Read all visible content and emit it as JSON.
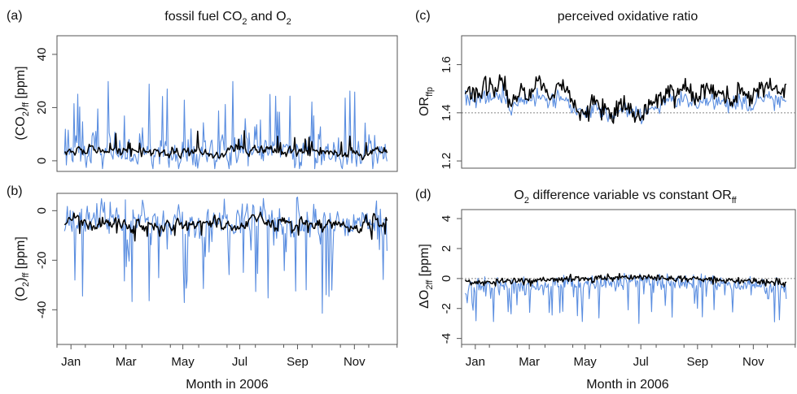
{
  "figure": {
    "background": "#ffffff"
  },
  "colors": {
    "blue": "#5b8ee0",
    "black": "#000000",
    "refline": "#888888"
  },
  "chart_data": [
    {
      "panel": "(a)",
      "type": "line",
      "title": "fossil fuel CO₂ and O₂",
      "title_parts": {
        "pre": "fossil fuel CO",
        "sub1": "2",
        "mid": " and O",
        "sub2": "2"
      },
      "ylabel_parts": {
        "pre": "(CO",
        "sub1": "2",
        "mid": ")",
        "sub2": "ff",
        "post": " [ppm]"
      },
      "xlim": [
        0,
        365
      ],
      "ylim": [
        -4,
        47
      ],
      "yticks": [
        0,
        20,
        40
      ],
      "xticks": [],
      "gen": {
        "seed": 11,
        "base": 3.0,
        "seasonAmp": 0.8,
        "noise": 5.0,
        "spikeProb": 0.13,
        "spikeMin": 6,
        "spikeMax": 26,
        "spikeSign": 1,
        "blackNoise": 1.8,
        "blackBase": 3.5,
        "xstart": 8,
        "xend": 354,
        "n": 340
      },
      "series": [
        {
          "color": "#5b8ee0",
          "width": 1.1,
          "key": "blue",
          "max": 29.8,
          "min": -3.0
        },
        {
          "color": "#000000",
          "width": 1.5,
          "key": "black",
          "max": 11.5,
          "min": -1.5
        }
      ]
    },
    {
      "panel": "(b)",
      "type": "line",
      "ylabel_parts": {
        "pre": "(O",
        "sub1": "2",
        "mid": ")",
        "sub2": "ff",
        "post": " [ppm]"
      },
      "xlim": [
        0,
        365
      ],
      "ylim": [
        -54,
        7
      ],
      "yticks": [
        0,
        -20,
        -40
      ],
      "xticks": [
        "Jan",
        "Mar",
        "May",
        "Jul",
        "Sep",
        "Nov"
      ],
      "xtick_days": [
        15,
        74,
        135,
        196,
        258,
        319
      ],
      "xlabel": "Month in 2006",
      "gen": {
        "seed": 23,
        "base": -4.5,
        "seasonAmp": 0.9,
        "noise": 6.0,
        "spikeProb": 0.13,
        "spikeMin": 8,
        "spikeMax": 36,
        "spikeSign": -1,
        "blackNoise": 2.4,
        "blackBase": -5.5,
        "xstart": 8,
        "xend": 354,
        "n": 340
      },
      "series": [
        {
          "color": "#5b8ee0",
          "width": 1.1,
          "key": "blue",
          "max": 5.5,
          "min": -43.0
        },
        {
          "color": "#000000",
          "width": 1.5,
          "key": "black",
          "max": 1.0,
          "min": -18.0
        }
      ]
    },
    {
      "panel": "(c)",
      "type": "line",
      "title": "perceived oxidative ratio",
      "ylabel_parts": {
        "pre": "OR",
        "sub1": "ffp"
      },
      "xlim": [
        0,
        365
      ],
      "ylim": [
        1.17,
        1.72
      ],
      "yticks": [
        1.2,
        1.4,
        1.6
      ],
      "xticks": [],
      "hline": 1.4,
      "gen": {
        "seed": 37,
        "black": [
          [
            5,
            1.5
          ],
          [
            15,
            1.47
          ],
          [
            25,
            1.52
          ],
          [
            35,
            1.49
          ],
          [
            45,
            1.53
          ],
          [
            55,
            1.43
          ],
          [
            65,
            1.5
          ],
          [
            75,
            1.48
          ],
          [
            85,
            1.54
          ],
          [
            95,
            1.46
          ],
          [
            105,
            1.52
          ],
          [
            115,
            1.49
          ],
          [
            125,
            1.42
          ],
          [
            135,
            1.38
          ],
          [
            145,
            1.45
          ],
          [
            155,
            1.41
          ],
          [
            165,
            1.37
          ],
          [
            175,
            1.44
          ],
          [
            185,
            1.4
          ],
          [
            195,
            1.38
          ],
          [
            205,
            1.42
          ],
          [
            215,
            1.45
          ],
          [
            225,
            1.49
          ],
          [
            235,
            1.48
          ],
          [
            245,
            1.51
          ],
          [
            255,
            1.46
          ],
          [
            265,
            1.5
          ],
          [
            275,
            1.47
          ],
          [
            285,
            1.49
          ],
          [
            295,
            1.45
          ],
          [
            305,
            1.5
          ],
          [
            315,
            1.46
          ],
          [
            325,
            1.5
          ],
          [
            335,
            1.52
          ],
          [
            345,
            1.49
          ],
          [
            354,
            1.5
          ]
        ],
        "blackNoise": 0.02,
        "blueOffset": -0.02,
        "blueNoise": 0.018,
        "xstart": 4,
        "xend": 355,
        "n": 300
      },
      "series": [
        {
          "color": "#5b8ee0",
          "width": 1.1,
          "key": "blue"
        },
        {
          "color": "#000000",
          "width": 1.5,
          "key": "black"
        }
      ]
    },
    {
      "panel": "(d)",
      "type": "line",
      "title": "O₂ difference variable vs constant OR_ff",
      "title_parts": {
        "pre": "O",
        "sub1": "2",
        "mid": " difference variable vs constant OR",
        "sub2": "ff"
      },
      "ylabel_parts": {
        "pre": "ΔO",
        "sub1": "2ff",
        "post": " [ppm]"
      },
      "xlim": [
        0,
        365
      ],
      "ylim": [
        -4.4,
        4.6
      ],
      "yticks": [
        -4,
        -2,
        0,
        2,
        4
      ],
      "xticks": [
        "Jan",
        "Mar",
        "May",
        "Jul",
        "Sep",
        "Nov"
      ],
      "xtick_days": [
        15,
        74,
        135,
        196,
        258,
        319
      ],
      "xlabel": "Month in 2006",
      "hline": 0,
      "gen": {
        "seed": 53,
        "blackBase": -0.1,
        "blackNoise": 0.12,
        "blueBase": -0.35,
        "blueNoise": 0.3,
        "spikeProb": 0.14,
        "spikeMin": 0.4,
        "spikeMax": 2.6,
        "xstart": 4,
        "xend": 355,
        "n": 330
      },
      "series": [
        {
          "color": "#5b8ee0",
          "width": 1.1,
          "key": "blue",
          "min": -3.0
        },
        {
          "color": "#000000",
          "width": 1.5,
          "key": "black"
        }
      ]
    }
  ]
}
